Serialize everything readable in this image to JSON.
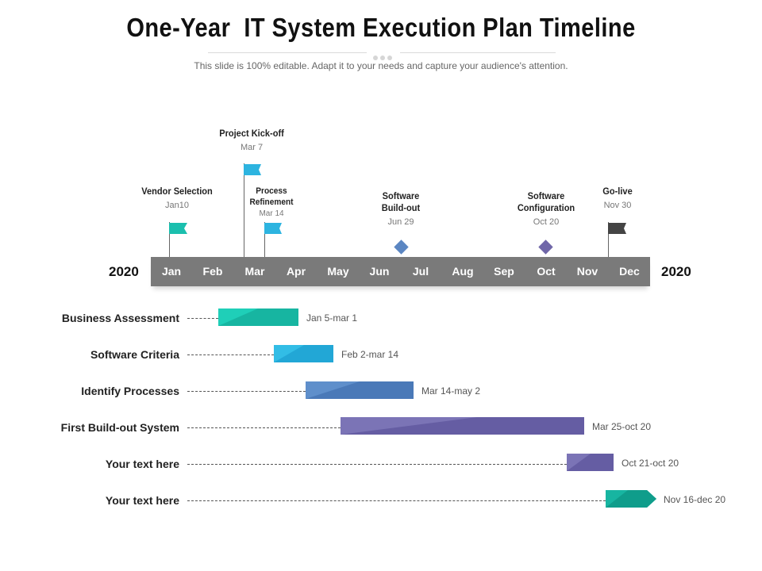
{
  "header": {
    "title": "One-Year  IT System Execution Plan Timeline",
    "subtitle": "This slide is 100% editable. Adapt it to your needs and capture your audience's attention."
  },
  "timeline": {
    "year_left": "2020",
    "year_right": "2020",
    "months": [
      "Jan",
      "Feb",
      "Mar",
      "Apr",
      "May",
      "Jun",
      "Jul",
      "Aug",
      "Sep",
      "Oct",
      "Nov",
      "Dec"
    ]
  },
  "milestones": [
    {
      "name": "Vendor Selection",
      "date": "Jan10",
      "marker": "flag",
      "color": "#1bbfae"
    },
    {
      "name": "Project Kick-off",
      "date": "Mar 7",
      "marker": "flag",
      "color": "#2db4e0"
    },
    {
      "name": "Process Refinement",
      "date": "Mar 14",
      "marker": "flag",
      "color": "#2db4e0"
    },
    {
      "name": "Software Build-out",
      "date": "Jun 29",
      "marker": "diamond",
      "color": "#5b86c2"
    },
    {
      "name": "Software Configuration",
      "date": "Oct 20",
      "marker": "diamond",
      "color": "#6f66a8"
    },
    {
      "name": "Go-live",
      "date": "Nov 30",
      "marker": "flag",
      "color": "#444444"
    }
  ],
  "tasks": [
    {
      "label": "Business Assessment",
      "range": "Jan 5-mar 1",
      "color": "#1fcfb8",
      "shade": "#17b5a1"
    },
    {
      "label": "Software Criteria",
      "range": "Feb 2-mar 14",
      "color": "#32bde6",
      "shade": "#22a7d6"
    },
    {
      "label": "Identify Processes",
      "range": "Mar 14-may 2",
      "color": "#5f8fcb",
      "shade": "#4a79b8"
    },
    {
      "label": "First Build-out System",
      "range": "Mar 25-oct 20",
      "color": "#7b74b6",
      "shade": "#655da3"
    },
    {
      "label": "Your text here",
      "range": "Oct 21-oct 20",
      "color": "#7b74b6",
      "shade": "#655da3"
    },
    {
      "label": "Your text here",
      "range": "Nov 16-dec 20",
      "color": "#17b5a1",
      "shade": "#0f9d8b"
    }
  ]
}
